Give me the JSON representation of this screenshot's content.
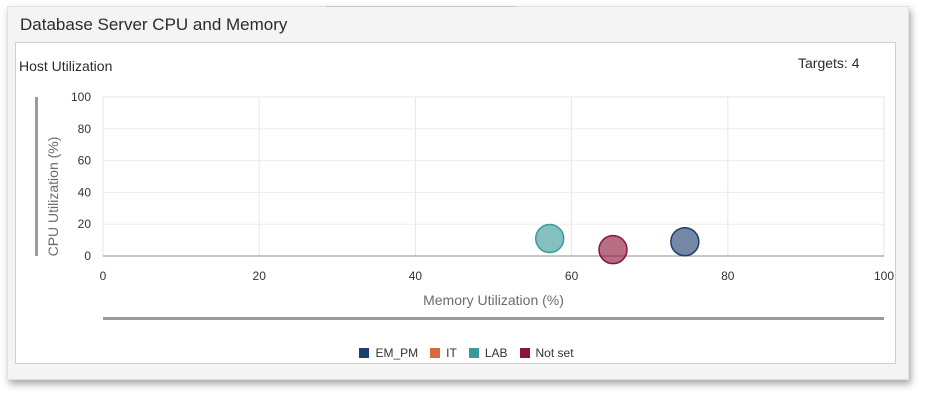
{
  "page": {
    "title": "Database Server CPU and Memory"
  },
  "card": {
    "title": "Host Utilization",
    "targets_label": "Targets: 4"
  },
  "chart_data": {
    "type": "bubble",
    "title": "Host Utilization",
    "xlabel": "Memory Utilization (%)",
    "ylabel": "CPU Utilization (%)",
    "xlim": [
      0,
      100
    ],
    "ylim": [
      0,
      100
    ],
    "x_ticks": [
      0,
      20,
      40,
      60,
      80,
      100
    ],
    "y_ticks": [
      0,
      20,
      40,
      60,
      80,
      100
    ],
    "grid": true,
    "legend_position": "bottom",
    "series": [
      {
        "name": "EM_PM",
        "color": "#1f3d6e",
        "points": [
          {
            "x": 74.5,
            "y": 9
          }
        ]
      },
      {
        "name": "IT",
        "color": "#d56a3a",
        "points": []
      },
      {
        "name": "LAB",
        "color": "#3a9a9a",
        "points": [
          {
            "x": 57.2,
            "y": 11
          }
        ]
      },
      {
        "name": "Not set",
        "color": "#8a1538",
        "points": [
          {
            "x": 65.3,
            "y": 4
          }
        ]
      }
    ]
  }
}
